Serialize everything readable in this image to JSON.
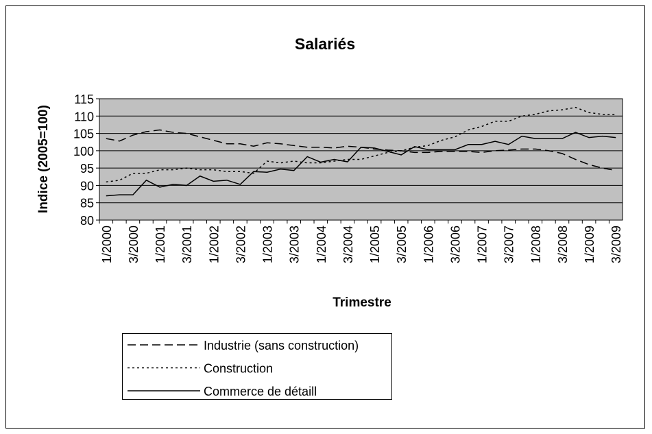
{
  "chart_data": {
    "type": "line",
    "title": "Salariés",
    "x_label": "Trimestre",
    "y_label": "Indice (2005=100)",
    "categories": [
      "1/2000",
      null,
      "3/2000",
      null,
      "1/2001",
      null,
      "3/2001",
      null,
      "1/2002",
      null,
      "3/2002",
      null,
      "1/2003",
      null,
      "3/2003",
      null,
      "1/2004",
      null,
      "3/2004",
      null,
      "1/2005",
      null,
      "3/2005",
      null,
      "1/2006",
      null,
      "3/2006",
      null,
      "1/2007",
      null,
      "3/2007",
      null,
      "1/2008",
      null,
      "3/2008",
      null,
      "1/2009",
      null,
      "3/2009"
    ],
    "series": [
      {
        "name": "Industrie (sans construction)",
        "color": "#000000",
        "dash": "dashed",
        "values": [
          103.5,
          102.8,
          104.5,
          105.5,
          106,
          105.3,
          105,
          104,
          103,
          102,
          102,
          101.3,
          102.3,
          102,
          101.5,
          101,
          101,
          100.8,
          101.3,
          101,
          100.5,
          100.2,
          100,
          99.5,
          99.5,
          99.8,
          99.8,
          99.8,
          99.5,
          100,
          100.2,
          100.5,
          100.5,
          100,
          99.2,
          97.5,
          96,
          95,
          94.3
        ]
      },
      {
        "name": "Construction",
        "color": "#000000",
        "dash": "dotted",
        "values": [
          91,
          91.5,
          93.5,
          93.5,
          94.5,
          94.5,
          95,
          94.5,
          94.5,
          94,
          94,
          93.5,
          97,
          96.5,
          97,
          96.5,
          96.5,
          97,
          97.5,
          97.5,
          98.5,
          99.5,
          100,
          101,
          101.5,
          103,
          104,
          106,
          107,
          108.5,
          108.5,
          110,
          110.5,
          111.5,
          111.8,
          112.5,
          111,
          110.5,
          110.5
        ]
      },
      {
        "name": "Commerce de détaill",
        "color": "#000000",
        "dash": "solid",
        "values": [
          87,
          87.3,
          87.3,
          91.5,
          89.5,
          90.3,
          90,
          92.7,
          91.2,
          91.5,
          90.3,
          94,
          93.8,
          94.7,
          94.3,
          98.3,
          96.7,
          97.5,
          96.8,
          101,
          100.8,
          99.8,
          98.8,
          101.2,
          100.3,
          100.3,
          100.3,
          101.8,
          101.8,
          102.7,
          101.8,
          104.2,
          103.5,
          103.5,
          103.5,
          105.3,
          103.8,
          104.2,
          103.8
        ]
      }
    ],
    "ylim": [
      80,
      115
    ],
    "yticks": [
      80,
      85,
      90,
      95,
      100,
      105,
      110,
      115
    ],
    "grid": true,
    "plot_background": "#c0c0c0"
  }
}
